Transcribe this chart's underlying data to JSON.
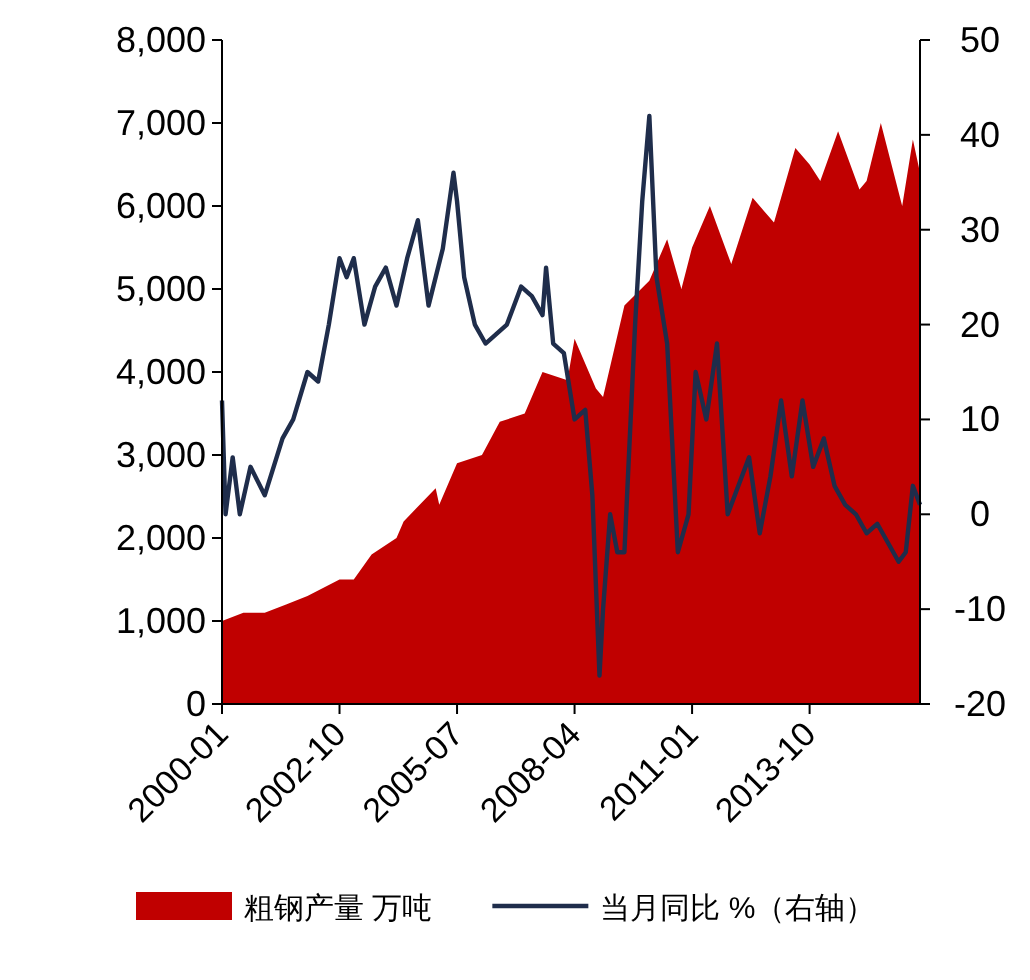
{
  "chart_data": {
    "type": "area",
    "legend": "bottom",
    "xlim": [
      "2000-01",
      "2016-05"
    ],
    "xticks": [
      "2000-01",
      "2002-10",
      "2005-07",
      "2008-04",
      "2011-01",
      "2013-10"
    ],
    "ylim": [
      0,
      8000
    ],
    "yticks": [
      0,
      {
        "value": 1000,
        "label": "1,000"
      },
      {
        "value": 2000,
        "label": "2,000"
      },
      {
        "value": 3000,
        "label": "3,000"
      },
      {
        "value": 4000,
        "label": "4,000"
      },
      {
        "value": 5000,
        "label": "5,000"
      },
      {
        "value": 6000,
        "label": "6,000"
      },
      {
        "value": 7000,
        "label": "7,000"
      },
      {
        "value": 8000,
        "label": "8,000"
      }
    ],
    "y2lim": [
      -20,
      50
    ],
    "y2ticks": [
      -20,
      -10,
      0,
      10,
      20,
      30,
      40,
      50
    ],
    "series": [
      {
        "name": "粗钢产量 万吨",
        "color": "#c00000",
        "x": [
          "2000-01",
          "2000-07",
          "2001-01",
          "2001-07",
          "2002-01",
          "2002-10",
          "2003-02",
          "2003-07",
          "2004-02",
          "2004-04",
          "2005-01",
          "2005-02",
          "2005-07",
          "2006-02",
          "2006-07",
          "2007-02",
          "2007-07",
          "2008-02",
          "2008-04",
          "2008-10",
          "2008-12",
          "2009-06",
          "2010-01",
          "2010-06",
          "2010-10",
          "2011-01",
          "2011-06",
          "2011-12",
          "2012-06",
          "2012-12",
          "2013-06",
          "2013-10",
          "2014-01",
          "2014-06",
          "2014-12",
          "2015-02",
          "2015-06",
          "2015-12",
          "2016-03",
          "2016-05"
        ],
        "values": [
          1000,
          1100,
          1100,
          1200,
          1300,
          1500,
          1500,
          1800,
          2000,
          2200,
          2600,
          2400,
          2900,
          3000,
          3400,
          3500,
          4000,
          3900,
          4400,
          3800,
          3700,
          4800,
          5100,
          5600,
          5000,
          5500,
          6000,
          5300,
          6100,
          5800,
          6700,
          6500,
          6300,
          6900,
          6200,
          6300,
          7000,
          6000,
          6800,
          6400
        ]
      },
      {
        "name": "当月同比 %（右轴）",
        "type": "line",
        "axis": "y2",
        "color": "#1f2d4b",
        "x": [
          "2000-01",
          "2000-02",
          "2000-04",
          "2000-06",
          "2000-09",
          "2001-01",
          "2001-06",
          "2001-09",
          "2002-01",
          "2002-04",
          "2002-07",
          "2002-10",
          "2002-12",
          "2003-02",
          "2003-05",
          "2003-08",
          "2003-11",
          "2004-02",
          "2004-05",
          "2004-08",
          "2004-11",
          "2005-03",
          "2005-06",
          "2005-07",
          "2005-09",
          "2005-12",
          "2006-03",
          "2006-06",
          "2006-09",
          "2007-01",
          "2007-04",
          "2007-07",
          "2007-08",
          "2007-10",
          "2008-01",
          "2008-04",
          "2008-07",
          "2008-09",
          "2008-11",
          "2008-12",
          "2009-02",
          "2009-04",
          "2009-06",
          "2009-09",
          "2009-11",
          "2010-01",
          "2010-03",
          "2010-06",
          "2010-09",
          "2010-12",
          "2011-02",
          "2011-05",
          "2011-08",
          "2011-11",
          "2012-02",
          "2012-05",
          "2012-08",
          "2012-11",
          "2013-02",
          "2013-05",
          "2013-08",
          "2013-11",
          "2014-02",
          "2014-05",
          "2014-08",
          "2014-11",
          "2015-02",
          "2015-05",
          "2015-08",
          "2015-11",
          "2016-01",
          "2016-03",
          "2016-05"
        ],
        "values": [
          12,
          0,
          6,
          0,
          5,
          2,
          8,
          10,
          15,
          14,
          20,
          27,
          25,
          27,
          20,
          24,
          26,
          22,
          27,
          31,
          22,
          28,
          36,
          33,
          25,
          20,
          18,
          19,
          20,
          24,
          23,
          21,
          26,
          18,
          17,
          10,
          11,
          2,
          -17,
          -10,
          0,
          -4,
          -4,
          20,
          33,
          42,
          25,
          18,
          -4,
          0,
          15,
          10,
          18,
          0,
          3,
          6,
          -2,
          4,
          12,
          4,
          12,
          5,
          8,
          3,
          1,
          0,
          -2,
          -1,
          -3,
          -5,
          -4,
          3,
          1
        ]
      }
    ]
  }
}
